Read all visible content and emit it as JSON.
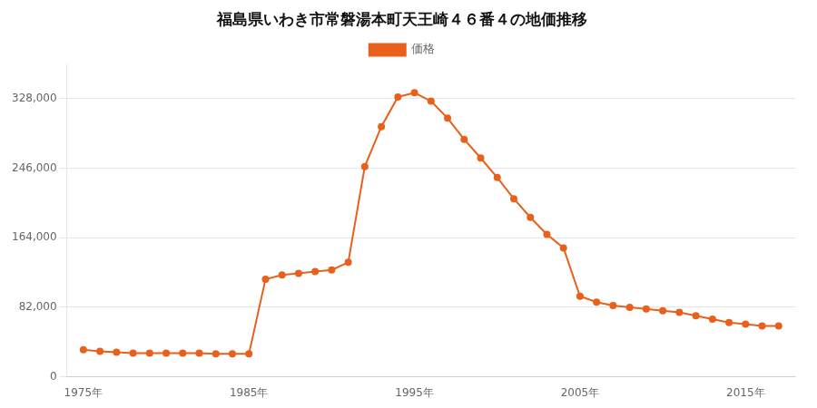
{
  "chart_data": {
    "type": "line",
    "title": "福島県いわき市常磐湯本町天王崎４６番４の地価推移",
    "x": [
      1975,
      1976,
      1977,
      1978,
      1979,
      1980,
      1981,
      1982,
      1983,
      1984,
      1985,
      1986,
      1987,
      1988,
      1989,
      1990,
      1991,
      1992,
      1993,
      1994,
      1995,
      1996,
      1997,
      1998,
      1999,
      2000,
      2001,
      2002,
      2003,
      2004,
      2005,
      2006,
      2007,
      2008,
      2009,
      2010,
      2011,
      2012,
      2013,
      2014,
      2015,
      2016,
      2017
    ],
    "series": [
      {
        "name": "価格",
        "color": "#e8601c",
        "marker": "circle",
        "values": [
          32000,
          30000,
          29000,
          28000,
          28000,
          28000,
          28000,
          28000,
          27000,
          27000,
          27000,
          115000,
          120000,
          122000,
          124000,
          126000,
          135000,
          248000,
          295000,
          330000,
          335000,
          325000,
          305000,
          280000,
          258000,
          235000,
          210000,
          188000,
          168000,
          152000,
          95000,
          88000,
          84000,
          82000,
          80000,
          78000,
          76000,
          72000,
          68000,
          64000,
          62000,
          60000,
          60000
        ]
      }
    ],
    "xlim": [
      1974,
      2018
    ],
    "xticks": [
      {
        "value": 1975,
        "label": "1975年"
      },
      {
        "value": 1985,
        "label": "1985年"
      },
      {
        "value": 1995,
        "label": "1995年"
      },
      {
        "value": 2005,
        "label": "2005年"
      },
      {
        "value": 2015,
        "label": "2015年"
      }
    ],
    "ylim": [
      0,
      368000
    ],
    "yticks": [
      0,
      {
        "value": 82000,
        "label": "82,000"
      },
      {
        "value": 164000,
        "label": "164,000"
      },
      {
        "value": 246000,
        "label": "246,000"
      },
      {
        "value": 328000,
        "label": "328,000"
      }
    ],
    "grid": "y",
    "legend": "top"
  }
}
